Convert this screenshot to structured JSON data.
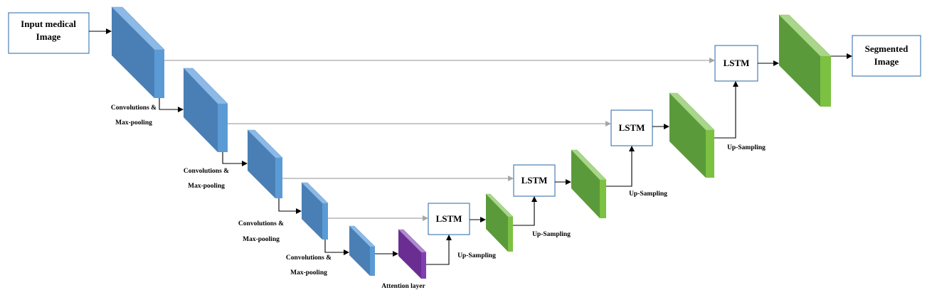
{
  "input_box": {
    "line1": "Input medical",
    "line2": "Image"
  },
  "output_box": {
    "line1": "Segmented",
    "line2": "Image"
  },
  "lstm_label": "LSTM",
  "encoder_labels": [
    {
      "line1": "Convolutions &",
      "line2": "Max-pooling"
    },
    {
      "line1": "Convolutions &",
      "line2": "Max-pooling"
    },
    {
      "line1": "Convolutions &",
      "line2": "Max-pooling"
    },
    {
      "line1": "Convolutions &",
      "line2": "Max-pooling"
    }
  ],
  "upsampling_label": "Up-Sampling",
  "attention_label": "Attention layer",
  "colors": {
    "encoder_front": "#4a7fb5",
    "encoder_side": "#5b9bd5",
    "encoder_top": "#8cb9e6",
    "decoder_front": "#5b9a3a",
    "decoder_side": "#7cc142",
    "decoder_top": "#a9d68a",
    "attention_front": "#6a2d91",
    "attention_side": "#7f3fb0",
    "attention_top": "#b08ad0",
    "box_border": "#4a7fb5",
    "skip_line": "#a6a6a6",
    "arrow": "#000000"
  }
}
